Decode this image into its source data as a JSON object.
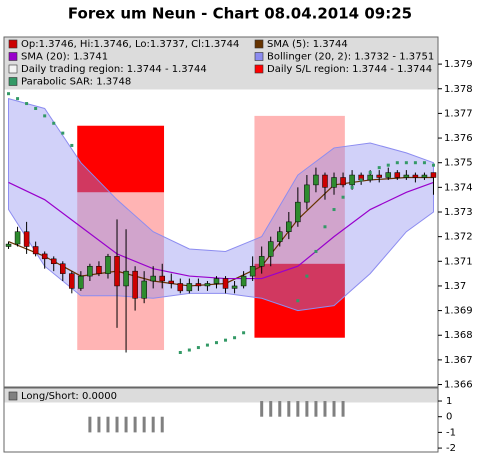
{
  "chart_data": [
    {
      "type": "candlestick",
      "title": "Forex um Neun - Chart 08.04.2014 09:25",
      "ylim": [
        1.3659,
        1.3801
      ],
      "yticks": [
        1.366,
        1.367,
        1.368,
        1.369,
        1.37,
        1.371,
        1.372,
        1.373,
        1.374,
        1.375,
        1.376,
        1.377,
        1.378,
        1.379
      ],
      "series": [
        {
          "type": "candlestick",
          "name": "Op:1.3746, Hi:1.3746, Lo:1.3737, Cl:1.3744",
          "color": "#cc0000",
          "up_color": "#2e8b2e",
          "open": [
            1.3716,
            1.3717,
            1.3722,
            1.3716,
            1.3713,
            1.3711,
            1.3709,
            1.3705,
            1.3699,
            1.3704,
            1.3708,
            1.3705,
            1.3712,
            1.37,
            1.3706,
            1.3695,
            1.3702,
            1.3704,
            1.3702,
            1.3701,
            1.3698,
            1.3701,
            1.37,
            1.3701,
            1.3703,
            1.3699,
            1.37,
            1.3704,
            1.3708,
            1.3712,
            1.3718,
            1.3722,
            1.3726,
            1.3734,
            1.3741,
            1.3745,
            1.374,
            1.3744,
            1.3741,
            1.3745,
            1.3743,
            1.3745,
            1.3744,
            1.3746,
            1.3744,
            1.3745,
            1.3744,
            1.3746
          ],
          "high": [
            1.3718,
            1.3724,
            1.3726,
            1.3718,
            1.3714,
            1.3712,
            1.371,
            1.3706,
            1.3706,
            1.3709,
            1.371,
            1.3713,
            1.3727,
            1.3723,
            1.3708,
            1.3706,
            1.3708,
            1.3709,
            1.3705,
            1.3703,
            1.3703,
            1.3703,
            1.3702,
            1.3704,
            1.3704,
            1.3702,
            1.3706,
            1.3712,
            1.3716,
            1.372,
            1.3724,
            1.373,
            1.374,
            1.3745,
            1.3748,
            1.3746,
            1.3746,
            1.3746,
            1.3747,
            1.3746,
            1.3747,
            1.3747,
            1.3748,
            1.3747,
            1.3747,
            1.3746,
            1.3746,
            1.3746
          ],
          "low": [
            1.3715,
            1.3716,
            1.3713,
            1.3712,
            1.3707,
            1.3706,
            1.3702,
            1.3697,
            1.3698,
            1.3702,
            1.3704,
            1.3703,
            1.3683,
            1.3673,
            1.369,
            1.3693,
            1.3699,
            1.3699,
            1.3699,
            1.3697,
            1.3697,
            1.3698,
            1.3698,
            1.3699,
            1.3697,
            1.3697,
            1.3699,
            1.3702,
            1.3705,
            1.3708,
            1.3716,
            1.3719,
            1.3724,
            1.3731,
            1.3738,
            1.3735,
            1.3737,
            1.374,
            1.3739,
            1.3741,
            1.3742,
            1.3742,
            1.3743,
            1.3743,
            1.3743,
            1.3742,
            1.3743,
            1.3737
          ],
          "close": [
            1.3717,
            1.3722,
            1.3716,
            1.3713,
            1.3711,
            1.3709,
            1.3705,
            1.3699,
            1.3704,
            1.3708,
            1.3705,
            1.3712,
            1.37,
            1.3706,
            1.3695,
            1.3702,
            1.3704,
            1.3702,
            1.3701,
            1.3698,
            1.3701,
            1.37,
            1.3701,
            1.3703,
            1.3699,
            1.37,
            1.3704,
            1.3708,
            1.3712,
            1.3718,
            1.3722,
            1.3726,
            1.3734,
            1.3741,
            1.3745,
            1.374,
            1.3744,
            1.3741,
            1.3745,
            1.3743,
            1.3745,
            1.3744,
            1.3746,
            1.3744,
            1.3745,
            1.3744,
            1.3745,
            1.3744
          ]
        },
        {
          "type": "line",
          "name": "SMA (5): 1.3744",
          "color": "#663300",
          "x": [
            0,
            4,
            8,
            12,
            16,
            20,
            24,
            28,
            32,
            36,
            40,
            44,
            47
          ],
          "values": [
            1.3718,
            1.3712,
            1.3704,
            1.3706,
            1.3702,
            1.37,
            1.3701,
            1.3708,
            1.3727,
            1.3741,
            1.3743,
            1.3744,
            1.3744
          ]
        },
        {
          "type": "line",
          "name": "SMA (20): 1.3741",
          "color": "#9900cc",
          "x": [
            0,
            4,
            8,
            12,
            16,
            20,
            24,
            28,
            32,
            36,
            40,
            44,
            47
          ],
          "values": [
            1.3742,
            1.3735,
            1.3724,
            1.3713,
            1.3707,
            1.3704,
            1.3703,
            1.3703,
            1.3708,
            1.372,
            1.3731,
            1.3738,
            1.3742
          ]
        },
        {
          "type": "band",
          "name": "Bollinger (20, 2): 1.3732 - 1.3751",
          "color": "#8c8cf0",
          "x": [
            0,
            4,
            8,
            12,
            16,
            20,
            24,
            28,
            32,
            36,
            40,
            44,
            47
          ],
          "upper": [
            1.3776,
            1.3772,
            1.375,
            1.3735,
            1.3722,
            1.3715,
            1.3714,
            1.372,
            1.3745,
            1.3756,
            1.3758,
            1.3754,
            1.375
          ],
          "lower": [
            1.3731,
            1.3708,
            1.3696,
            1.3696,
            1.3695,
            1.3697,
            1.3697,
            1.3695,
            1.369,
            1.3692,
            1.3705,
            1.3722,
            1.373
          ]
        },
        {
          "type": "region",
          "name": "Daily trading region: 1.3744 - 1.3744",
          "color": "#ffb4b4",
          "boxes": [
            {
              "x": [
                7.6,
                17.2
              ],
              "y": [
                1.3674,
                1.3738
              ]
            },
            {
              "x": [
                27.2,
                37.2
              ],
              "y": [
                1.3709,
                1.3769
              ]
            }
          ]
        },
        {
          "type": "region",
          "name": "Daily S/L region: 1.3744 - 1.3744",
          "color": "#ff0000",
          "boxes": [
            {
              "x": [
                7.6,
                17.2
              ],
              "y": [
                1.3738,
                1.3765
              ]
            },
            {
              "x": [
                27.2,
                37.2
              ],
              "y": [
                1.3679,
                1.3709
              ]
            }
          ]
        },
        {
          "type": "dots",
          "name": "Parabolic SAR: 1.3748",
          "color": "#339966",
          "values": [
            1.3778,
            1.3776,
            1.3774,
            1.3772,
            1.3769,
            1.3766,
            1.3762,
            1.3757,
            null,
            null,
            null,
            null,
            null,
            null,
            null,
            null,
            null,
            null,
            null,
            1.3673,
            1.3674,
            1.3675,
            1.3676,
            1.3677,
            1.3678,
            1.3679,
            1.3681,
            null,
            null,
            null,
            null,
            null,
            1.3694,
            1.3704,
            1.3714,
            1.3724,
            1.3731,
            1.3736,
            1.374,
            1.3743,
            1.3746,
            1.3748,
            1.3749,
            1.375,
            1.375,
            1.375,
            1.375,
            1.3749
          ]
        }
      ]
    },
    {
      "type": "bar",
      "ylim": [
        -2.25,
        1.83
      ],
      "yticks": [
        1,
        0,
        -1,
        -2
      ],
      "series": [
        {
          "name": "Long/Short: 0.0000",
          "color": "#808080",
          "values": [
            0,
            0,
            0,
            0,
            0,
            0,
            0,
            0,
            0,
            -1,
            -1,
            -1,
            -1,
            -1,
            -1,
            -1,
            -1,
            -1,
            0,
            0,
            0,
            0,
            0,
            0,
            0,
            0,
            0,
            0,
            1,
            1,
            1,
            1,
            1,
            1,
            1,
            1,
            1,
            1,
            0,
            0,
            0,
            0,
            0,
            0,
            0,
            0,
            0,
            0
          ]
        }
      ]
    }
  ]
}
